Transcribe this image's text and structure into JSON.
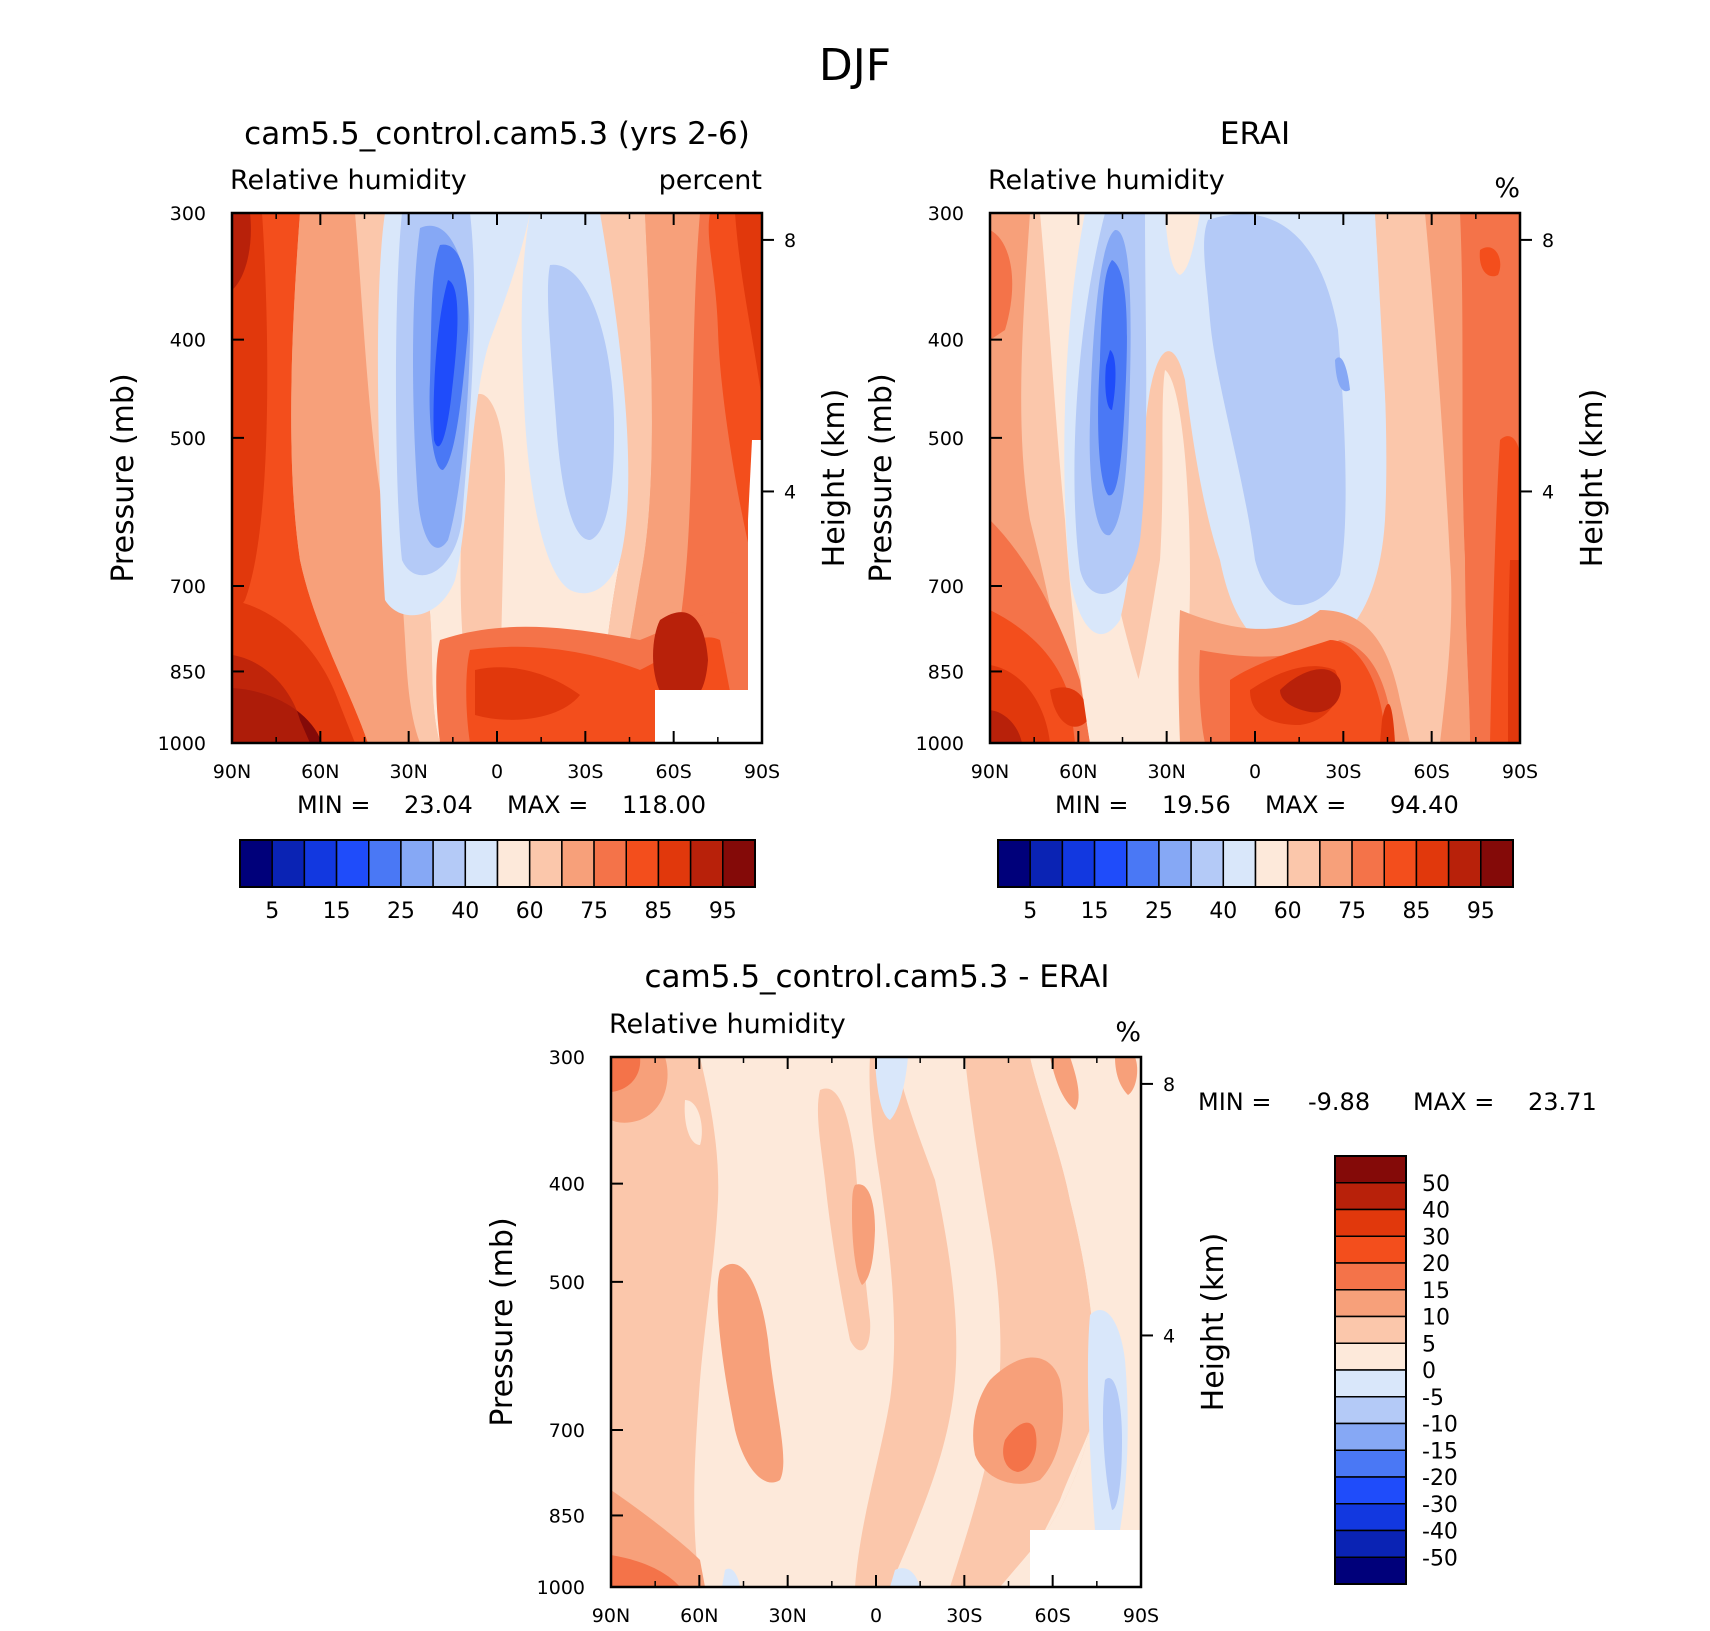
{
  "figure": {
    "title": "DJF"
  },
  "panels": [
    {
      "title": "cam5.5_control.cam5.3 (yrs 2-6)",
      "left_label": "Relative humidity",
      "right_label": "percent",
      "ylabel": "Pressure (mb)",
      "ylabel_right": "Height (km)",
      "stats": {
        "min_label": "MIN =",
        "min": "23.04",
        "max_label": "MAX =",
        "max": "118.00"
      }
    },
    {
      "title": "ERAI",
      "left_label": "Relative humidity",
      "right_label": "%",
      "ylabel": "Pressure (mb)",
      "ylabel_right": "Height (km)",
      "stats": {
        "min_label": "MIN =",
        "min": "19.56",
        "max_label": "MAX =",
        "max": "94.40"
      }
    },
    {
      "title": "cam5.5_control.cam5.3 - ERAI",
      "left_label": "Relative humidity",
      "right_label": "%",
      "ylabel": "Pressure (mb)",
      "ylabel_right": "Height (km)",
      "stats": {
        "min_label": "MIN =",
        "min": "-9.88",
        "max_label": "MAX =",
        "max": "23.71"
      }
    }
  ],
  "chart_data": [
    {
      "type": "heatmap",
      "variable": "Relative humidity",
      "units": "percent",
      "x_ticks": [
        "90N",
        "60N",
        "30N",
        "0",
        "30S",
        "60S",
        "90S"
      ],
      "x_tick_lat": [
        90,
        60,
        30,
        0,
        -30,
        -60,
        -90
      ],
      "y_ticks": [
        300,
        400,
        500,
        700,
        850,
        1000
      ],
      "y_right_ticks_km": [
        4,
        8
      ],
      "xlim": [
        90,
        -90
      ],
      "ylim_mb": [
        1000,
        300
      ],
      "colorbar_levels": [
        5,
        10,
        15,
        20,
        25,
        30,
        40,
        50,
        60,
        70,
        75,
        80,
        85,
        90,
        95
      ],
      "colorbar_labels": [
        "5",
        "15",
        "25",
        "40",
        "60",
        "75",
        "85",
        "95"
      ],
      "colorbar_colors": [
        "#00007a",
        "#0a23b4",
        "#1238e0",
        "#1f4cfa",
        "#4a78f5",
        "#86a8f5",
        "#b4caf7",
        "#d9e7fa",
        "#fde9da",
        "#fbc7ab",
        "#f7a07a",
        "#f47349",
        "#f34e1c",
        "#e1380c",
        "#b8210a",
        "#840a08"
      ],
      "min": 23.04,
      "max": 118.0
    },
    {
      "type": "heatmap",
      "variable": "Relative humidity",
      "units": "%",
      "x_ticks": [
        "90N",
        "60N",
        "30N",
        "0",
        "30S",
        "60S",
        "90S"
      ],
      "x_tick_lat": [
        90,
        60,
        30,
        0,
        -30,
        -60,
        -90
      ],
      "y_ticks": [
        300,
        400,
        500,
        700,
        850,
        1000
      ],
      "y_right_ticks_km": [
        4,
        8
      ],
      "xlim": [
        90,
        -90
      ],
      "ylim_mb": [
        1000,
        300
      ],
      "colorbar_levels": [
        5,
        10,
        15,
        20,
        25,
        30,
        40,
        50,
        60,
        70,
        75,
        80,
        85,
        90,
        95
      ],
      "colorbar_labels": [
        "5",
        "15",
        "25",
        "40",
        "60",
        "75",
        "85",
        "95"
      ],
      "colorbar_colors": [
        "#00007a",
        "#0a23b4",
        "#1238e0",
        "#1f4cfa",
        "#4a78f5",
        "#86a8f5",
        "#b4caf7",
        "#d9e7fa",
        "#fde9da",
        "#fbc7ab",
        "#f7a07a",
        "#f47349",
        "#f34e1c",
        "#e1380c",
        "#b8210a",
        "#840a08"
      ],
      "min": 19.56,
      "max": 94.4
    },
    {
      "type": "heatmap",
      "variable": "Relative humidity",
      "units": "%",
      "x_ticks": [
        "90N",
        "60N",
        "30N",
        "0",
        "30S",
        "60S",
        "90S"
      ],
      "x_tick_lat": [
        90,
        60,
        30,
        0,
        -30,
        -60,
        -90
      ],
      "y_ticks": [
        300,
        400,
        500,
        700,
        850,
        1000
      ],
      "y_right_ticks_km": [
        4,
        8
      ],
      "xlim": [
        90,
        -90
      ],
      "ylim_mb": [
        1000,
        300
      ],
      "colorbar_labels": [
        "50",
        "40",
        "30",
        "20",
        "15",
        "10",
        "5",
        "0",
        "-5",
        "-10",
        "-15",
        "-20",
        "-30",
        "-40",
        "-50"
      ],
      "colorbar_colors": [
        "#840a08",
        "#b8210a",
        "#e1380c",
        "#f34e1c",
        "#f47349",
        "#f7a07a",
        "#fbc7ab",
        "#fde9da",
        "#d9e7fa",
        "#b4caf7",
        "#86a8f5",
        "#4a78f5",
        "#1f4cfa",
        "#1238e0",
        "#0a23b4",
        "#00007a"
      ],
      "min": -9.88,
      "max": 23.71
    }
  ]
}
